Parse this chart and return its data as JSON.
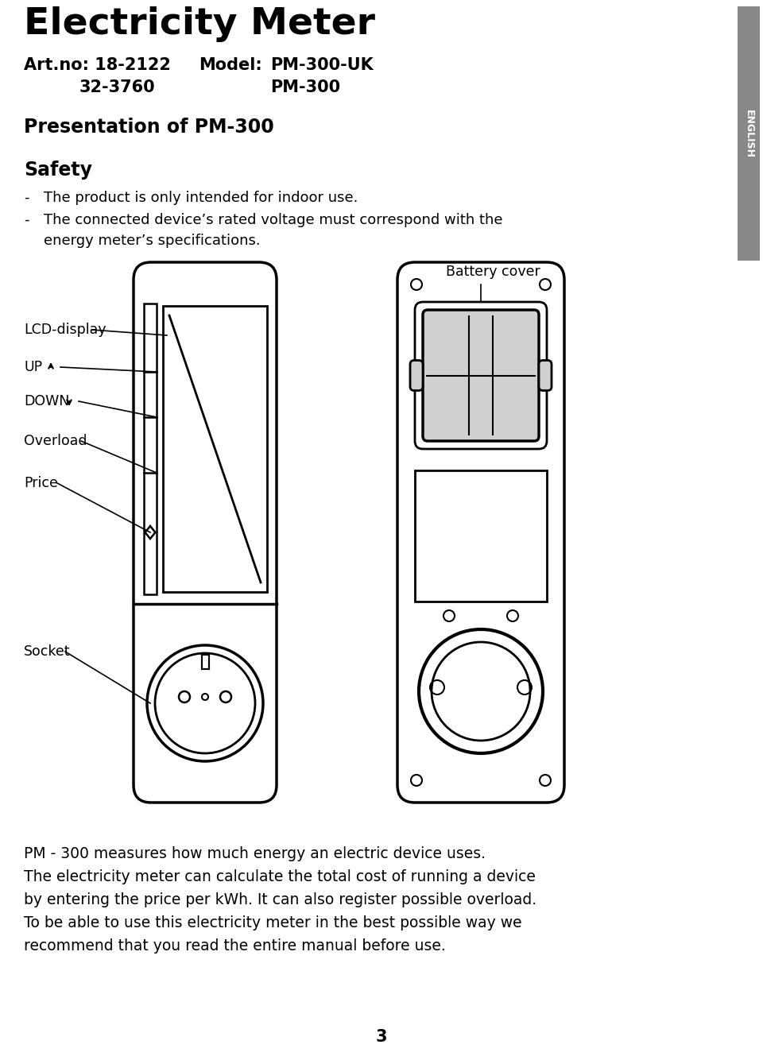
{
  "title": "Electricity Meter",
  "artno_line1_left": "Art.no: 18-2122",
  "artno_line1_mid": "Model:",
  "artno_line1_right": "PM-300-UK",
  "artno_line2_left": "32-3760",
  "artno_line2_right": "PM-300",
  "section_title": "Presentation of PM-300",
  "safety_title": "Safety",
  "bullet1": "The product is only intended for indoor use.",
  "bullet2a": "The connected device’s rated voltage must correspond with the",
  "bullet2b": "energy meter’s specifications.",
  "battery_cover_label": "Battery cover",
  "label_lcd": "LCD-display",
  "label_up": "UP",
  "label_down": "DOWN",
  "label_overload": "Overload",
  "label_price": "Price",
  "label_socket": "Socket",
  "body_line1": "PM - 300 measures how much energy an electric device uses.",
  "body_line2": "The electricity meter can calculate the total cost of running a device",
  "body_line3": "by entering the price per kWh. It can also register possible overload.",
  "body_line4": "To be able to use this electricity meter in the best possible way we",
  "body_line5": "recommend that you read the entire manual before use.",
  "page_number": "3",
  "sidebar_color": "#888888",
  "sidebar_text": "ENGLISH",
  "bg_color": "#ffffff",
  "text_color": "#000000"
}
